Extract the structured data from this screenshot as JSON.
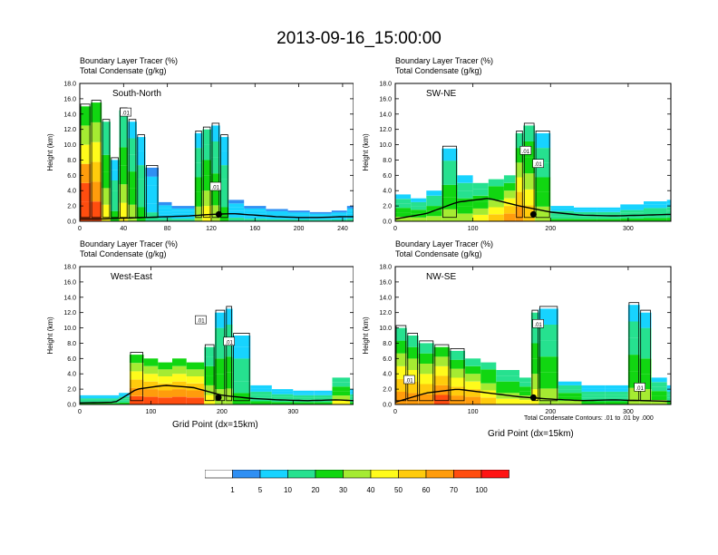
{
  "title": "2013-09-16_15:00:00",
  "panel_titles": {
    "tracer": "Boundary Layer Tracer   (%)",
    "condensate": "Total Condensate   (g/kg)"
  },
  "footnote": "Total Condensate Contours: .01 to .01 by .000",
  "x_axis_label": "Grid Point (dx=15km)",
  "y_axis_label": "Height (km)",
  "contour_label": ".01",
  "colorbar": {
    "colors": [
      "#ffffff",
      "#2f8ff3",
      "#17d3ff",
      "#26e18f",
      "#11d611",
      "#a5eb32",
      "#fffb1b",
      "#ffcb0c",
      "#ff9c0c",
      "#ff4d0f",
      "#ff1414"
    ],
    "labels": [
      "1",
      "5",
      "10",
      "20",
      "30",
      "40",
      "50",
      "60",
      "70",
      "100"
    ]
  },
  "chart_data": [
    {
      "type": "heatmap",
      "name": "South-North",
      "xlabel": "",
      "ylabel": "Height (km)",
      "xlim": [
        0,
        250
      ],
      "ylim": [
        0,
        18
      ],
      "xticks": [
        "0",
        "40",
        "80",
        "120",
        "160",
        "200",
        "240"
      ],
      "yticks": [
        "0.0",
        "2.0",
        "4.0",
        "6.0",
        "8.0",
        "10.0",
        "12.0",
        "14.0",
        "16.0",
        "18.0"
      ],
      "columns": [
        {
          "x": 0,
          "top": 15.0,
          "v": 85
        },
        {
          "x": 10,
          "top": 15.5,
          "v": 80
        },
        {
          "x": 20,
          "top": 13.0,
          "v": 40
        },
        {
          "x": 28,
          "top": 8.0,
          "v": 20
        },
        {
          "x": 36,
          "top": 14.5,
          "v": 40
        },
        {
          "x": 44,
          "top": 13.0,
          "v": 30
        },
        {
          "x": 52,
          "top": 11.0,
          "v": 20
        },
        {
          "x": 60,
          "top": 7.0,
          "v": 10
        },
        {
          "x": 72,
          "top": 2.5,
          "v": 10
        },
        {
          "x": 84,
          "top": 2.0,
          "v": 10
        },
        {
          "x": 96,
          "top": 2.0,
          "v": 10
        },
        {
          "x": 105,
          "top": 11.5,
          "v": 30
        },
        {
          "x": 112,
          "top": 12.0,
          "v": 40
        },
        {
          "x": 120,
          "top": 12.5,
          "v": 30
        },
        {
          "x": 128,
          "top": 11.0,
          "v": 20
        },
        {
          "x": 136,
          "top": 2.8,
          "v": 10
        },
        {
          "x": 150,
          "top": 2.0,
          "v": 10
        },
        {
          "x": 170,
          "top": 1.6,
          "v": 10
        },
        {
          "x": 190,
          "top": 1.4,
          "v": 10
        },
        {
          "x": 210,
          "top": 1.2,
          "v": 10
        },
        {
          "x": 230,
          "top": 1.4,
          "v": 10
        },
        {
          "x": 244,
          "top": 2.0,
          "v": 10
        }
      ],
      "surface_x": [
        0,
        20,
        40,
        60,
        80,
        100,
        120,
        140,
        160,
        180,
        200,
        220,
        240
      ],
      "surface_h": [
        0.3,
        0.3,
        0.4,
        0.5,
        0.6,
        0.7,
        0.9,
        1.0,
        0.8,
        0.6,
        0.5,
        0.5,
        0.6
      ],
      "marker_x": 127,
      "labels": [
        {
          "x": 42,
          "y": 14.2
        },
        {
          "x": 124,
          "y": 4.5
        }
      ]
    },
    {
      "type": "heatmap",
      "name": "SW-NE",
      "xlabel": "",
      "ylabel": "Height (km)",
      "xlim": [
        0,
        355
      ],
      "ylim": [
        0,
        18
      ],
      "xticks": [
        "0",
        "100",
        "200",
        "300"
      ],
      "yticks": [
        "0.0",
        "2.0",
        "4.0",
        "6.0",
        "8.0",
        "10.0",
        "12.0",
        "14.0",
        "16.0",
        "18.0"
      ],
      "columns": [
        {
          "x": 0,
          "top": 3.5,
          "v": 30
        },
        {
          "x": 20,
          "top": 3.0,
          "v": 30
        },
        {
          "x": 40,
          "top": 4.0,
          "v": 30
        },
        {
          "x": 60,
          "top": 9.5,
          "v": 30
        },
        {
          "x": 80,
          "top": 6.0,
          "v": 30
        },
        {
          "x": 100,
          "top": 5.0,
          "v": 40
        },
        {
          "x": 120,
          "top": 5.5,
          "v": 50
        },
        {
          "x": 140,
          "top": 6.0,
          "v": 60
        },
        {
          "x": 155,
          "top": 11.5,
          "v": 60
        },
        {
          "x": 165,
          "top": 12.5,
          "v": 50
        },
        {
          "x": 180,
          "top": 11.5,
          "v": 30
        },
        {
          "x": 200,
          "top": 2.0,
          "v": 20
        },
        {
          "x": 230,
          "top": 1.8,
          "v": 20
        },
        {
          "x": 260,
          "top": 1.8,
          "v": 20
        },
        {
          "x": 290,
          "top": 2.2,
          "v": 20
        },
        {
          "x": 320,
          "top": 2.6,
          "v": 20
        },
        {
          "x": 350,
          "top": 2.8,
          "v": 20
        }
      ],
      "surface_x": [
        0,
        40,
        80,
        120,
        160,
        200,
        240,
        280,
        320,
        355
      ],
      "surface_h": [
        0.3,
        1.0,
        2.5,
        3.0,
        2.0,
        1.2,
        0.8,
        0.7,
        0.8,
        0.9
      ],
      "marker_x": 178,
      "labels": [
        {
          "x": 168,
          "y": 9.2
        },
        {
          "x": 184,
          "y": 7.5
        }
      ]
    },
    {
      "type": "heatmap",
      "name": "West-East",
      "xlabel": "Grid Point (dx=15km)",
      "ylabel": "Height (km)",
      "xlim": [
        0,
        385
      ],
      "ylim": [
        0,
        18
      ],
      "xticks": [
        "0",
        "100",
        "200",
        "300"
      ],
      "yticks": [
        "0.0",
        "2.0",
        "4.0",
        "6.0",
        "8.0",
        "10.0",
        "12.0",
        "14.0",
        "16.0",
        "18.0"
      ],
      "columns": [
        {
          "x": 0,
          "top": 1.2,
          "v": 20
        },
        {
          "x": 30,
          "top": 1.2,
          "v": 20
        },
        {
          "x": 55,
          "top": 1.5,
          "v": 20
        },
        {
          "x": 70,
          "top": 6.5,
          "v": 80
        },
        {
          "x": 90,
          "top": 6.0,
          "v": 80
        },
        {
          "x": 110,
          "top": 5.5,
          "v": 80
        },
        {
          "x": 130,
          "top": 6.0,
          "v": 70
        },
        {
          "x": 150,
          "top": 5.5,
          "v": 70
        },
        {
          "x": 175,
          "top": 7.5,
          "v": 40
        },
        {
          "x": 190,
          "top": 12.0,
          "v": 30
        },
        {
          "x": 205,
          "top": 12.5,
          "v": 30
        },
        {
          "x": 215,
          "top": 9.0,
          "v": 20
        },
        {
          "x": 240,
          "top": 2.5,
          "v": 20
        },
        {
          "x": 270,
          "top": 2.0,
          "v": 20
        },
        {
          "x": 300,
          "top": 1.8,
          "v": 20
        },
        {
          "x": 330,
          "top": 1.8,
          "v": 20
        },
        {
          "x": 355,
          "top": 3.5,
          "v": 40
        },
        {
          "x": 380,
          "top": 2.0,
          "v": 20
        }
      ],
      "surface_x": [
        0,
        50,
        80,
        120,
        160,
        200,
        240,
        280,
        320,
        360,
        385
      ],
      "surface_h": [
        0.2,
        0.3,
        2.0,
        2.5,
        2.2,
        1.2,
        0.8,
        0.6,
        0.5,
        0.6,
        0.5
      ],
      "marker_x": 195,
      "labels": [
        {
          "x": 170,
          "y": 11.0
        },
        {
          "x": 210,
          "y": 8.2
        }
      ]
    },
    {
      "type": "heatmap",
      "name": "NW-SE",
      "xlabel": "Grid Point (dx=15km)",
      "ylabel": "Height (km)",
      "xlim": [
        0,
        355
      ],
      "ylim": [
        0,
        18
      ],
      "xticks": [
        "0",
        "100",
        "200",
        "300"
      ],
      "yticks": [
        "0.0",
        "2.0",
        "4.0",
        "6.0",
        "8.0",
        "10.0",
        "12.0",
        "14.0",
        "16.0",
        "18.0"
      ],
      "columns": [
        {
          "x": 0,
          "top": 10.0,
          "v": 60
        },
        {
          "x": 15,
          "top": 9.0,
          "v": 60
        },
        {
          "x": 30,
          "top": 8.0,
          "v": 60
        },
        {
          "x": 50,
          "top": 7.5,
          "v": 70
        },
        {
          "x": 70,
          "top": 7.0,
          "v": 60
        },
        {
          "x": 90,
          "top": 6.0,
          "v": 60
        },
        {
          "x": 110,
          "top": 5.5,
          "v": 50
        },
        {
          "x": 130,
          "top": 4.5,
          "v": 40
        },
        {
          "x": 160,
          "top": 3.5,
          "v": 40
        },
        {
          "x": 175,
          "top": 12.0,
          "v": 40
        },
        {
          "x": 185,
          "top": 12.5,
          "v": 30
        },
        {
          "x": 210,
          "top": 3.0,
          "v": 30
        },
        {
          "x": 240,
          "top": 2.5,
          "v": 20
        },
        {
          "x": 270,
          "top": 2.5,
          "v": 20
        },
        {
          "x": 300,
          "top": 13.0,
          "v": 30
        },
        {
          "x": 315,
          "top": 12.0,
          "v": 30
        },
        {
          "x": 330,
          "top": 3.5,
          "v": 30
        },
        {
          "x": 350,
          "top": 2.5,
          "v": 20
        }
      ],
      "surface_x": [
        0,
        40,
        80,
        120,
        160,
        200,
        240,
        280,
        320,
        355
      ],
      "surface_h": [
        0.3,
        1.5,
        2.0,
        1.5,
        1.0,
        0.7,
        0.5,
        0.6,
        0.5,
        0.4
      ],
      "marker_x": 178,
      "labels": [
        {
          "x": 18,
          "y": 3.2
        },
        {
          "x": 184,
          "y": 10.5
        },
        {
          "x": 315,
          "y": 2.2
        }
      ]
    }
  ]
}
